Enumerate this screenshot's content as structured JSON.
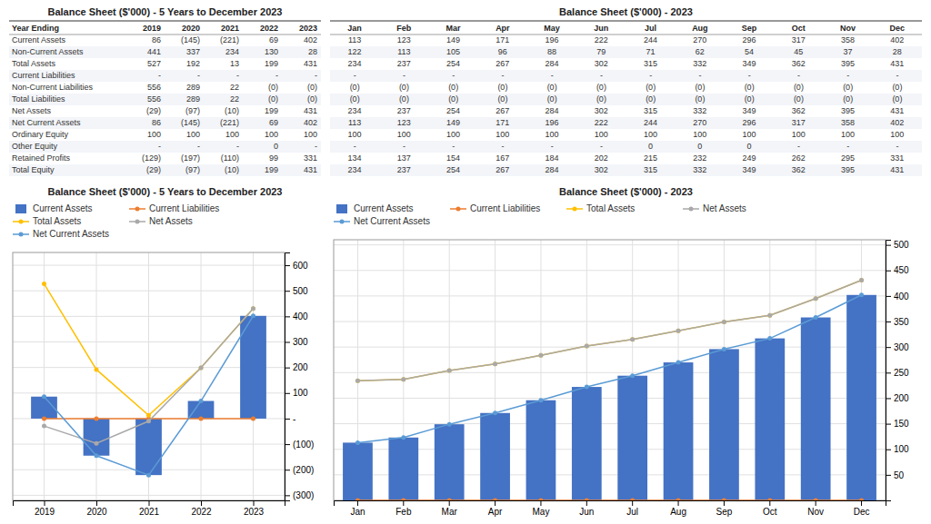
{
  "chart_data": [
    {
      "type": "table",
      "title": "Balance Sheet ($'000) - 5 Years to December 2023",
      "xlabel": "Year Ending",
      "categories": [
        "2019",
        "2020",
        "2021",
        "2022",
        "2023"
      ],
      "series": [
        {
          "name": "Current Assets",
          "values": [
            86,
            -145,
            -221,
            69,
            402
          ],
          "value_labels": [
            "86",
            "(145)",
            "(221)",
            "69",
            "402"
          ]
        },
        {
          "name": "Non-Current Assets",
          "values": [
            441,
            337,
            234,
            130,
            28
          ],
          "value_labels": [
            "441",
            "337",
            "234",
            "130",
            "28"
          ]
        },
        {
          "name": "Total Assets",
          "values": [
            527,
            192,
            13,
            199,
            431
          ],
          "value_labels": [
            "527",
            "192",
            "13",
            "199",
            "431"
          ]
        },
        {
          "name": "Current Liabilities",
          "values": [
            null,
            null,
            null,
            null,
            null
          ],
          "value_labels": [
            "-",
            "-",
            "-",
            "-",
            "-"
          ]
        },
        {
          "name": "Non-Current Liabilities",
          "values": [
            556,
            289,
            22,
            null,
            null
          ],
          "value_labels": [
            "556",
            "289",
            "22",
            "(0)",
            "(0)"
          ]
        },
        {
          "name": "Total Liabilities",
          "values": [
            556,
            289,
            22,
            null,
            null
          ],
          "value_labels": [
            "556",
            "289",
            "22",
            "(0)",
            "(0)"
          ]
        },
        {
          "name": "Net Assets",
          "values": [
            -29,
            -97,
            -10,
            199,
            431
          ],
          "value_labels": [
            "(29)",
            "(97)",
            "(10)",
            "199",
            "431"
          ]
        },
        {
          "name": "Net Current Assets",
          "values": [
            86,
            -145,
            -221,
            69,
            402
          ],
          "value_labels": [
            "86",
            "(145)",
            "(221)",
            "69",
            "402"
          ]
        },
        {
          "name": "Ordinary Equity",
          "values": [
            100,
            100,
            100,
            100,
            100
          ],
          "value_labels": [
            "100",
            "100",
            "100",
            "100",
            "100"
          ]
        },
        {
          "name": "Other Equity",
          "values": [
            null,
            null,
            null,
            0,
            null
          ],
          "value_labels": [
            "-",
            "-",
            "-",
            "0",
            "-"
          ]
        },
        {
          "name": "Retained Profits",
          "values": [
            -129,
            -197,
            -110,
            99,
            331
          ],
          "value_labels": [
            "(129)",
            "(197)",
            "(110)",
            "99",
            "331"
          ]
        },
        {
          "name": "Total Equity",
          "values": [
            -29,
            -97,
            -10,
            199,
            431
          ],
          "value_labels": [
            "(29)",
            "(97)",
            "(10)",
            "199",
            "431"
          ]
        }
      ]
    },
    {
      "type": "table",
      "title": "Balance Sheet ($'000) - 2023",
      "categories": [
        "Jan",
        "Feb",
        "Mar",
        "Apr",
        "May",
        "Jun",
        "Jul",
        "Aug",
        "Sep",
        "Oct",
        "Nov",
        "Dec"
      ],
      "series": [
        {
          "values": [
            113,
            123,
            149,
            171,
            196,
            222,
            244,
            270,
            296,
            317,
            358,
            402
          ],
          "value_labels": [
            "113",
            "123",
            "149",
            "171",
            "196",
            "222",
            "244",
            "270",
            "296",
            "317",
            "358",
            "402"
          ]
        },
        {
          "values": [
            122,
            113,
            105,
            96,
            88,
            79,
            71,
            62,
            54,
            45,
            37,
            28
          ],
          "value_labels": [
            "122",
            "113",
            "105",
            "96",
            "88",
            "79",
            "71",
            "62",
            "54",
            "45",
            "37",
            "28"
          ]
        },
        {
          "values": [
            234,
            237,
            254,
            267,
            284,
            302,
            315,
            332,
            349,
            362,
            395,
            431
          ],
          "value_labels": [
            "234",
            "237",
            "254",
            "267",
            "284",
            "302",
            "315",
            "332",
            "349",
            "362",
            "395",
            "431"
          ]
        },
        {
          "values": [
            null,
            null,
            null,
            null,
            null,
            null,
            null,
            null,
            null,
            null,
            null,
            null
          ],
          "value_labels": [
            "-",
            "-",
            "-",
            "-",
            "-",
            "-",
            "-",
            "-",
            "-",
            "-",
            "-",
            "-"
          ]
        },
        {
          "values": [
            null,
            null,
            null,
            null,
            null,
            null,
            null,
            null,
            null,
            null,
            null,
            null
          ],
          "value_labels": [
            "(0)",
            "(0)",
            "(0)",
            "(0)",
            "(0)",
            "(0)",
            "(0)",
            "(0)",
            "(0)",
            "(0)",
            "(0)",
            "(0)"
          ]
        },
        {
          "values": [
            null,
            null,
            null,
            null,
            null,
            null,
            null,
            null,
            null,
            null,
            null,
            null
          ],
          "value_labels": [
            "(0)",
            "(0)",
            "(0)",
            "(0)",
            "(0)",
            "(0)",
            "(0)",
            "(0)",
            "(0)",
            "(0)",
            "(0)",
            "(0)"
          ]
        },
        {
          "values": [
            234,
            237,
            254,
            267,
            284,
            302,
            315,
            332,
            349,
            362,
            395,
            431
          ],
          "value_labels": [
            "234",
            "237",
            "254",
            "267",
            "284",
            "302",
            "315",
            "332",
            "349",
            "362",
            "395",
            "431"
          ]
        },
        {
          "values": [
            113,
            123,
            149,
            171,
            196,
            222,
            244,
            270,
            296,
            317,
            358,
            402
          ],
          "value_labels": [
            "113",
            "123",
            "149",
            "171",
            "196",
            "222",
            "244",
            "270",
            "296",
            "317",
            "358",
            "402"
          ]
        },
        {
          "values": [
            100,
            100,
            100,
            100,
            100,
            100,
            100,
            100,
            100,
            100,
            100,
            100
          ],
          "value_labels": [
            "100",
            "100",
            "100",
            "100",
            "100",
            "100",
            "100",
            "100",
            "100",
            "100",
            "100",
            "100"
          ]
        },
        {
          "values": [
            null,
            null,
            null,
            null,
            null,
            null,
            0,
            0,
            0,
            null,
            null,
            null
          ],
          "value_labels": [
            "-",
            "-",
            "-",
            "-",
            "-",
            "-",
            "0",
            "0",
            "0",
            "-",
            "-",
            "-"
          ]
        },
        {
          "values": [
            134,
            137,
            154,
            167,
            184,
            202,
            215,
            232,
            249,
            262,
            295,
            331
          ],
          "value_labels": [
            "134",
            "137",
            "154",
            "167",
            "184",
            "202",
            "215",
            "232",
            "249",
            "262",
            "295",
            "331"
          ]
        },
        {
          "values": [
            234,
            237,
            254,
            267,
            284,
            302,
            315,
            332,
            349,
            362,
            395,
            431
          ],
          "value_labels": [
            "234",
            "237",
            "254",
            "267",
            "284",
            "302",
            "315",
            "332",
            "349",
            "362",
            "395",
            "431"
          ]
        }
      ]
    },
    {
      "type": "bar",
      "title": "Balance Sheet ($'000) - 5 Years to December 2023",
      "x": [
        2019,
        2020,
        2021,
        2022,
        2023
      ],
      "xlim": [
        2018.4,
        2023.6
      ],
      "xticks": [
        2019,
        2020,
        2021,
        2022,
        2023
      ],
      "ylim": [
        -320,
        650
      ],
      "yticks": [
        {
          "value": -300,
          "label": "(300)"
        },
        {
          "value": -200,
          "label": "(200)"
        },
        {
          "value": -100,
          "label": "(100)"
        },
        {
          "value": 0,
          "label": "-"
        },
        100,
        200,
        300,
        400,
        500,
        600
      ],
      "grid": true,
      "legend": "upper left",
      "series": [
        {
          "name": "Current Assets",
          "type": "bar",
          "color": "#4472C4",
          "values": [
            86,
            -145,
            -221,
            69,
            402
          ]
        },
        {
          "name": "Current Liabilities",
          "type": "line",
          "color": "#ED7D31",
          "marker": "circle",
          "values": [
            0,
            0,
            0,
            0,
            0
          ]
        },
        {
          "name": "Total Assets",
          "type": "line",
          "color": "#FFC000",
          "marker": "circle",
          "values": [
            527,
            192,
            13,
            199,
            431
          ]
        },
        {
          "name": "Net Assets",
          "type": "line",
          "color": "#A9A9A9",
          "marker": "circle",
          "values": [
            -29,
            -97,
            -10,
            199,
            431
          ]
        },
        {
          "name": "Net Current Assets",
          "type": "line",
          "color": "#5B9BD5",
          "marker": "circle",
          "values": [
            86,
            -145,
            -221,
            69,
            402
          ]
        }
      ]
    },
    {
      "type": "bar",
      "title": "Balance Sheet ($'000) - 2023",
      "categories": [
        "Jan",
        "Feb",
        "Mar",
        "Apr",
        "May",
        "Jun",
        "Jul",
        "Aug",
        "Sep",
        "Oct",
        "Nov",
        "Dec"
      ],
      "ylim": [
        0,
        510
      ],
      "yticks": [
        50,
        100,
        150,
        200,
        250,
        300,
        350,
        400,
        450,
        500
      ],
      "grid": true,
      "legend": "upper left",
      "series": [
        {
          "name": "Current Assets",
          "type": "bar",
          "color": "#4472C4",
          "values": [
            113,
            123,
            149,
            171,
            196,
            222,
            244,
            270,
            296,
            317,
            358,
            402
          ]
        },
        {
          "name": "Current Liabilities",
          "type": "line",
          "color": "#ED7D31",
          "marker": "circle",
          "values": [
            0,
            0,
            0,
            0,
            0,
            0,
            0,
            0,
            0,
            0,
            0,
            0
          ]
        },
        {
          "name": "Total Assets",
          "type": "line",
          "color": "#FFC000",
          "marker": "circle",
          "values": [
            234,
            237,
            254,
            267,
            284,
            302,
            315,
            332,
            349,
            362,
            395,
            431
          ]
        },
        {
          "name": "Net Assets",
          "type": "line",
          "color": "#A9A9A9",
          "marker": "circle",
          "values": [
            234,
            237,
            254,
            267,
            284,
            302,
            315,
            332,
            349,
            362,
            395,
            431
          ]
        },
        {
          "name": "Net Current Assets",
          "type": "line",
          "color": "#5B9BD5",
          "marker": "circle",
          "values": [
            113,
            123,
            149,
            171,
            196,
            222,
            244,
            270,
            296,
            317,
            358,
            402
          ]
        }
      ]
    }
  ]
}
